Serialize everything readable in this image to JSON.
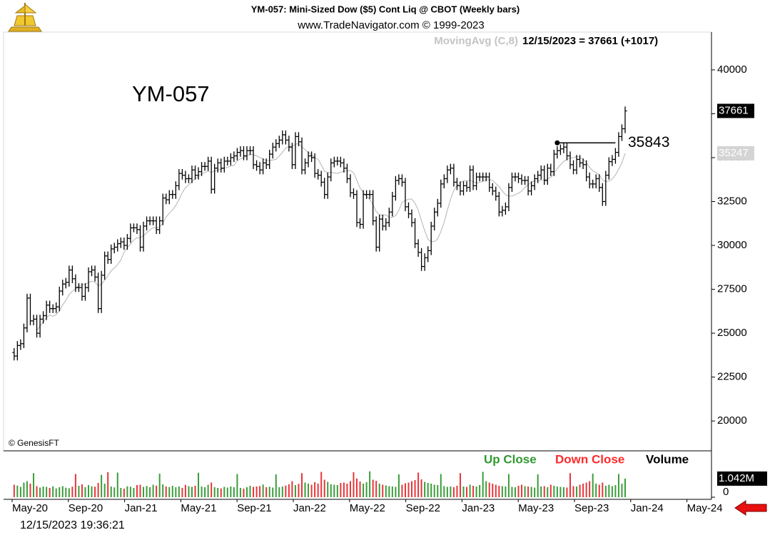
{
  "chart_data": {
    "type": "ohlc",
    "title": "YM-057:  Mini-Sized Dow ($5) Cont Liq @ CBOT  (Weekly bars)",
    "subtitle": "www.TradeNavigator.com © 1999-2023",
    "status": "12/15/2023 = 37661 (+1017)",
    "symbol": "YM-057",
    "copyright": "© GenesisFT",
    "timestamp": "12/15/2023 19:36:21",
    "color": "#000000",
    "open": [
      23900,
      23700,
      24300,
      24400,
      25300,
      27000,
      25700,
      25800,
      25000,
      25800,
      26000,
      26600,
      26400,
      26400,
      26500,
      27400,
      27800,
      27900,
      28600,
      28100,
      27600,
      27600,
      27100,
      27600,
      28500,
      28600,
      28200,
      26400,
      28300,
      29400,
      29200,
      29800,
      29900,
      30100,
      30200,
      30000,
      30400,
      31000,
      31000,
      30900,
      29900,
      31100,
      31400,
      31400,
      31400,
      30900,
      31400,
      32700,
      32600,
      32900,
      32900,
      33400,
      34100,
      34000,
      33800,
      33800,
      34300,
      34000,
      34200,
      34500,
      34500,
      34800,
      33200,
      34400,
      34700,
      34400,
      34800,
      34800,
      35000,
      35100,
      35300,
      35400,
      35100,
      35400,
      35400,
      34600,
      34500,
      34300,
      34700,
      34600,
      35200,
      35600,
      35800,
      36000,
      36300,
      36000,
      35600,
      34600,
      36200,
      35900,
      34300,
      34700,
      35100,
      35000,
      34100,
      34000,
      33600,
      32900,
      33900,
      34700,
      34800,
      34800,
      34700,
      34400,
      33800,
      33000,
      32900,
      31300,
      31200,
      32900,
      32900,
      32900,
      31400,
      29900,
      31500,
      31100,
      31300,
      31900,
      32800,
      33700,
      33800,
      33600,
      32200,
      31800,
      31300,
      30100,
      29600,
      28800,
      29300,
      29700,
      31100,
      31900,
      32400,
      33500,
      33800,
      34300,
      34400,
      33600,
      33400,
      33100,
      33400,
      33300,
      34300,
      33400,
      33900,
      33900,
      33900,
      33900,
      33300,
      33100,
      32800,
      31900,
      32000,
      32200,
      33300,
      33900,
      33900,
      33800,
      33700,
      33700,
      33100,
      33400,
      33800,
      34000,
      34300,
      33700,
      34400,
      34200,
      35200,
      35400,
      35500,
      35600,
      35100,
      34600,
      34300,
      34900,
      34700,
      34600,
      33900,
      33500,
      33500,
      33800,
      33300,
      32500,
      34000,
      34771,
      34900,
      35300,
      36200,
      36644
    ],
    "high": [
      24150,
      24550,
      24650,
      25550,
      27250,
      27250,
      26050,
      26050,
      26050,
      26250,
      26850,
      26850,
      26650,
      26750,
      27650,
      28050,
      28150,
      28850,
      28850,
      28350,
      27850,
      27850,
      27850,
      28750,
      28850,
      28850,
      28450,
      28550,
      29650,
      29650,
      30050,
      30150,
      30350,
      30450,
      30450,
      30650,
      31250,
      31250,
      31250,
      31150,
      31350,
      31650,
      31650,
      31650,
      31650,
      31650,
      32950,
      32950,
      33150,
      33150,
      33650,
      34350,
      34350,
      34250,
      34050,
      34550,
      34550,
      34450,
      34750,
      34750,
      35050,
      35050,
      34650,
      34950,
      34950,
      35050,
      35050,
      35250,
      35350,
      35550,
      35650,
      35650,
      35650,
      35650,
      35650,
      34850,
      34750,
      34950,
      34950,
      35450,
      35850,
      36050,
      36250,
      36550,
      36550,
      36250,
      35850,
      36450,
      36450,
      36150,
      34950,
      35350,
      35350,
      35250,
      34350,
      34250,
      33850,
      34150,
      34950,
      35050,
      35050,
      35050,
      34950,
      34650,
      34050,
      33250,
      33150,
      31550,
      33150,
      33150,
      33150,
      33150,
      31650,
      31750,
      31750,
      31550,
      32150,
      33050,
      33950,
      34050,
      34050,
      33850,
      32450,
      32050,
      31550,
      30350,
      29850,
      29550,
      29950,
      31350,
      32150,
      32650,
      33750,
      34050,
      34550,
      34650,
      34650,
      33850,
      33650,
      33650,
      33650,
      34550,
      34550,
      34150,
      34150,
      34150,
      34150,
      34150,
      33550,
      33350,
      33050,
      32250,
      32450,
      33550,
      34150,
      34150,
      34150,
      34050,
      33950,
      33950,
      33650,
      34050,
      34250,
      34550,
      34550,
      34650,
      34650,
      35450,
      35650,
      35750,
      35850,
      35850,
      35350,
      34850,
      35150,
      35150,
      34950,
      34850,
      34150,
      33750,
      34050,
      34050,
      33550,
      34250,
      35021,
      35150,
      35550,
      36450,
      36894,
      37911
    ],
    "low": [
      23450,
      23450,
      24050,
      24150,
      25050,
      25450,
      25450,
      24750,
      24750,
      25550,
      25750,
      26150,
      26150,
      26150,
      26250,
      27150,
      27550,
      27650,
      27850,
      27350,
      27350,
      26850,
      26850,
      27350,
      28250,
      27950,
      26150,
      26150,
      28050,
      28950,
      28950,
      29550,
      29650,
      29850,
      29750,
      29750,
      30150,
      30750,
      30650,
      29650,
      29650,
      30850,
      31150,
      31150,
      30650,
      30650,
      31150,
      32350,
      32350,
      32650,
      32650,
      33150,
      33750,
      33550,
      33550,
      33550,
      33750,
      33750,
      33950,
      34250,
      34250,
      32950,
      32950,
      34150,
      34150,
      34150,
      34550,
      34550,
      34750,
      34850,
      35050,
      34850,
      34850,
      35150,
      34350,
      34250,
      34050,
      34050,
      34350,
      34350,
      34950,
      35350,
      35550,
      35750,
      35750,
      35350,
      34350,
      34350,
      35650,
      34050,
      34050,
      34450,
      34750,
      33850,
      33750,
      33350,
      32650,
      32650,
      33650,
      34450,
      34550,
      34450,
      34150,
      33550,
      32750,
      32650,
      31050,
      30950,
      30950,
      32650,
      32650,
      31150,
      29650,
      29650,
      30850,
      30850,
      31050,
      31650,
      32550,
      33450,
      33350,
      31950,
      31550,
      31050,
      29850,
      29350,
      28550,
      28550,
      29050,
      29450,
      30850,
      31650,
      32150,
      33250,
      33550,
      34050,
      33350,
      33150,
      32850,
      32850,
      33050,
      33050,
      33150,
      33150,
      33650,
      33650,
      33650,
      33050,
      32850,
      32550,
      31650,
      31650,
      31750,
      31950,
      33050,
      33650,
      33550,
      33450,
      33450,
      32850,
      32850,
      33150,
      33550,
      33750,
      33450,
      33450,
      33950,
      33950,
      34950,
      35150,
      35250,
      34850,
      34350,
      34050,
      34050,
      34450,
      34350,
      33650,
      33250,
      33250,
      33250,
      33050,
      32250,
      32250,
      33750,
      34521,
      34650,
      35050,
      35950,
      36394
    ],
    "close": [
      23700,
      24300,
      24400,
      25300,
      27000,
      25700,
      25800,
      25000,
      25800,
      26000,
      26600,
      26400,
      26400,
      26500,
      27400,
      27800,
      27900,
      28600,
      28100,
      27600,
      27600,
      27100,
      27600,
      28500,
      28600,
      28200,
      26400,
      28300,
      29400,
      29200,
      29800,
      29900,
      30100,
      30200,
      30000,
      30400,
      31000,
      31000,
      30900,
      29900,
      31100,
      31400,
      31400,
      31400,
      30900,
      31400,
      32700,
      32600,
      32900,
      32900,
      33400,
      34100,
      34000,
      33800,
      33800,
      34300,
      34000,
      34200,
      34500,
      34500,
      34800,
      33200,
      34400,
      34700,
      34400,
      34800,
      34800,
      35000,
      35100,
      35300,
      35400,
      35100,
      35400,
      35400,
      34600,
      34500,
      34300,
      34700,
      34600,
      35200,
      35600,
      35800,
      36000,
      36300,
      36000,
      35600,
      34600,
      36200,
      35900,
      34300,
      34700,
      35100,
      35000,
      34100,
      34000,
      33600,
      32900,
      33900,
      34700,
      34800,
      34800,
      34700,
      34400,
      33800,
      33000,
      32900,
      31300,
      31200,
      32900,
      32900,
      32900,
      31400,
      29900,
      31500,
      31100,
      31300,
      31900,
      32800,
      33700,
      33800,
      33600,
      32200,
      31800,
      31300,
      30100,
      29600,
      28800,
      29300,
      29700,
      31100,
      31900,
      32400,
      33500,
      33800,
      34300,
      34400,
      33600,
      33400,
      33100,
      33400,
      33300,
      34300,
      33400,
      33900,
      33900,
      33900,
      33900,
      33300,
      33100,
      32800,
      31900,
      32000,
      32200,
      33300,
      33900,
      33900,
      33800,
      33700,
      33700,
      33100,
      33400,
      33800,
      34000,
      34300,
      33700,
      34400,
      34200,
      35200,
      35400,
      35500,
      35600,
      35100,
      34600,
      34300,
      34900,
      34700,
      34600,
      33900,
      33500,
      33500,
      33800,
      33300,
      32500,
      34000,
      34771,
      34900,
      35300,
      36200,
      36644,
      37661
    ],
    "moving_average": {
      "label": "MovingAvg (C,8)",
      "period": 8,
      "last": 35247,
      "color": "#b4b4b4"
    },
    "last_price": 37661,
    "annotation": {
      "value": 35843
    },
    "ylim": [
      18300,
      42150
    ],
    "yticks": [
      20000,
      22500,
      25000,
      27500,
      30000,
      32500,
      35000,
      37500,
      40000
    ],
    "xticks": [
      {
        "value": "2020-05",
        "label": "May-20"
      },
      {
        "value": "2020-09",
        "label": "Sep-20"
      },
      {
        "value": "2021-01",
        "label": "Jan-21"
      },
      {
        "value": "2021-05",
        "label": "May-21"
      },
      {
        "value": "2021-09",
        "label": "Sep-21"
      },
      {
        "value": "2022-01",
        "label": "Jan-22"
      },
      {
        "value": "2022-05",
        "label": "May-22"
      },
      {
        "value": "2022-09",
        "label": "Sep-22"
      },
      {
        "value": "2023-01",
        "label": "Jan-23"
      },
      {
        "value": "2023-05",
        "label": "May-23"
      },
      {
        "value": "2023-09",
        "label": "Sep-23"
      },
      {
        "value": "2024-01",
        "label": "Jan-24"
      },
      {
        "value": "2024-05",
        "label": "May-24"
      }
    ],
    "volume": {
      "title": "Volume",
      "up_label": "Up Close",
      "down_label": "Down Close",
      "up_color": "#3a9d3a",
      "down_color": "#e8353a",
      "ylim": [
        0,
        1800000
      ],
      "yticks": [
        0
      ],
      "last": {
        "value": 1042000,
        "label": "1.042M"
      },
      "values": [
        700000,
        650000,
        580000,
        820000,
        900000,
        760000,
        1350000,
        620000,
        540000,
        600000,
        580000,
        520000,
        610000,
        490000,
        560000,
        620000,
        530000,
        500000,
        590000,
        1300000,
        640000,
        720000,
        560000,
        680000,
        610000,
        590000,
        800000,
        1250000,
        760000,
        1400000,
        600000,
        550000,
        1380000,
        520000,
        480000,
        610000,
        590000,
        520000,
        680000,
        700000,
        580000,
        630000,
        560000,
        700000,
        650000,
        1320000,
        720000,
        600000,
        570000,
        640000,
        560000,
        600000,
        520000,
        690000,
        620000,
        580000,
        640000,
        1370000,
        600000,
        560000,
        700000,
        820000,
        560000,
        520000,
        490000,
        580000,
        540000,
        600000,
        560000,
        1300000,
        520000,
        480000,
        560000,
        640000,
        580000,
        600000,
        620000,
        710000,
        560000,
        590000,
        540000,
        1280000,
        560000,
        600000,
        650000,
        720000,
        900000,
        680000,
        750000,
        1350000,
        820000,
        760000,
        700000,
        840000,
        760000,
        1420000,
        980000,
        860000,
        720000,
        700000,
        680000,
        800000,
        820000,
        760000,
        900000,
        1400000,
        1050000,
        880000,
        760000,
        840000,
        1450000,
        980000,
        920000,
        760000,
        700000,
        660000,
        620000,
        600000,
        580000,
        1280000,
        700000,
        780000,
        820000,
        900000,
        960000,
        1380000,
        1000000,
        860000,
        800000,
        760000,
        700000,
        680000,
        1300000,
        620000,
        580000,
        600000,
        560000,
        640000,
        1350000,
        600000,
        580000,
        700000,
        640000,
        600000,
        680000,
        1420000,
        900000,
        820000,
        760000,
        700000,
        640000,
        620000,
        600000,
        1300000,
        580000,
        560000,
        640000,
        700000,
        620000,
        600000,
        580000,
        540000,
        1280000,
        600000,
        620000,
        560000,
        700000,
        640000,
        600000,
        580000,
        560000,
        540000,
        1350000,
        620000,
        600000,
        700000,
        760000,
        820000,
        900000,
        1320000,
        760000,
        700000,
        820000,
        640000,
        700000,
        620000,
        680000,
        1300000,
        760000,
        1042000
      ]
    }
  }
}
